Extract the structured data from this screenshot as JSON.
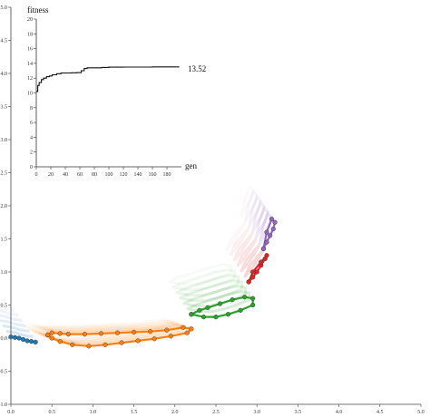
{
  "chart_data": [
    {
      "type": "line",
      "title": "",
      "ylabel": "fitness",
      "xlabel": "gen",
      "xlim": [
        0,
        200
      ],
      "ylim": [
        0,
        20
      ],
      "x_ticks": [
        "0",
        "20",
        "40",
        "60",
        "80",
        "100",
        "120",
        "140",
        "160",
        "180"
      ],
      "y_ticks": [
        "0",
        "2",
        "4",
        "6",
        "8",
        "10",
        "12",
        "14",
        "16",
        "18",
        "20"
      ],
      "end_label": "13.52",
      "series": [
        {
          "x": [
            0,
            2,
            4,
            7,
            10,
            14,
            18,
            22,
            28,
            34,
            40,
            48,
            56,
            62,
            66,
            70,
            80,
            90,
            100,
            120,
            140,
            160,
            180,
            197
          ],
          "y": [
            10.2,
            11.0,
            11.4,
            11.8,
            12.0,
            12.2,
            12.3,
            12.45,
            12.6,
            12.7,
            12.7,
            12.72,
            12.75,
            13.0,
            13.3,
            13.4,
            13.4,
            13.45,
            13.48,
            13.5,
            13.5,
            13.52,
            13.52,
            13.52
          ]
        }
      ]
    },
    {
      "type": "line",
      "title": "",
      "xlim": [
        0.0,
        5.0
      ],
      "ylim": [
        -1.0,
        5.0
      ],
      "x_ticks": [
        "0.0",
        "0.5",
        "1.0",
        "1.5",
        "2.0",
        "2.5",
        "3.0",
        "3.5",
        "4.0",
        "4.5",
        "5.0"
      ],
      "y_ticks": [
        "-1.0",
        "-0.5",
        "0.0",
        "0.5",
        "1.0",
        "1.5",
        "2.0",
        "2.5",
        "3.0",
        "3.5",
        "4.0",
        "4.5",
        "5.0"
      ],
      "colors": {
        "blue": "#1f77b4",
        "orange": "#ff7f0e",
        "green": "#2ca02c",
        "red": "#d62728",
        "purple": "#9467bd"
      },
      "series": [
        {
          "name": "",
          "color_key": "blue",
          "x": [
            0.0,
            0.05,
            0.1,
            0.15,
            0.2,
            0.25,
            0.3
          ],
          "y": [
            0.02,
            0.01,
            0.0,
            -0.02,
            -0.04,
            -0.05,
            -0.06
          ]
        },
        {
          "name": "",
          "color_key": "orange",
          "x": [
            0.45,
            0.5,
            0.6,
            0.75,
            0.95,
            1.15,
            1.35,
            1.55,
            1.75,
            1.95,
            2.15,
            2.2,
            2.1,
            1.9,
            1.7,
            1.5,
            1.3,
            1.1,
            0.9,
            0.7,
            0.6,
            0.5,
            0.45
          ],
          "y": [
            0.05,
            0.0,
            -0.05,
            -0.1,
            -0.12,
            -0.1,
            -0.07,
            -0.04,
            -0.01,
            0.03,
            0.08,
            0.14,
            0.16,
            0.12,
            0.1,
            0.09,
            0.08,
            0.07,
            0.06,
            0.06,
            0.07,
            0.08,
            0.05
          ]
        },
        {
          "name": "",
          "color_key": "green",
          "x": [
            2.2,
            2.35,
            2.5,
            2.65,
            2.8,
            2.95,
            2.95,
            2.85,
            2.7,
            2.55,
            2.4,
            2.3,
            2.2
          ],
          "y": [
            0.36,
            0.32,
            0.32,
            0.36,
            0.42,
            0.5,
            0.6,
            0.62,
            0.58,
            0.52,
            0.46,
            0.42,
            0.36
          ]
        },
        {
          "name": "",
          "color_key": "red",
          "x": [
            2.9,
            2.95,
            3.0,
            3.05,
            3.1,
            3.12,
            3.05,
            2.95,
            2.9
          ],
          "y": [
            0.85,
            0.92,
            1.0,
            1.1,
            1.2,
            1.25,
            1.15,
            1.0,
            0.85
          ]
        },
        {
          "name": "",
          "color_key": "purple",
          "x": [
            3.08,
            3.12,
            3.16,
            3.2,
            3.22,
            3.18,
            3.12,
            3.08
          ],
          "y": [
            1.35,
            1.45,
            1.55,
            1.65,
            1.75,
            1.8,
            1.6,
            1.35
          ]
        }
      ]
    }
  ]
}
